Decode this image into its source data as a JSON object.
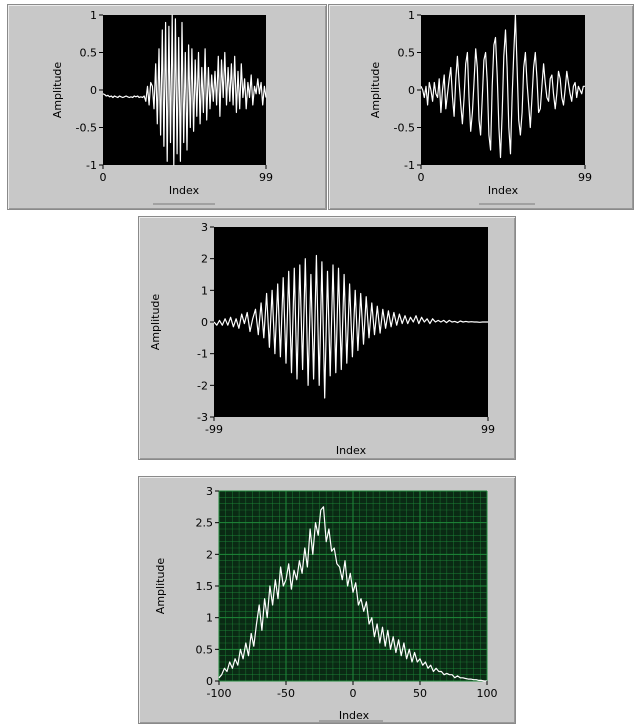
{
  "chart_data": [
    {
      "type": "line",
      "title": "",
      "xlabel": "Index",
      "ylabel": "Amplitude",
      "xlim": [
        0,
        99
      ],
      "ylim": [
        -1,
        1
      ],
      "xticks": [
        "0",
        "99"
      ],
      "yticks": [
        "1",
        "0.5",
        "0",
        "-0.5",
        "-1"
      ],
      "grid": false,
      "plot_bg": "#000000",
      "line_color": "#ffffff",
      "series": [
        {
          "x": [
            0,
            1,
            2,
            3,
            4,
            5,
            6,
            7,
            8,
            9,
            10,
            11,
            12,
            13,
            14,
            15,
            16,
            17,
            18,
            19,
            20,
            21,
            22,
            23,
            24,
            25,
            26,
            27,
            28,
            29,
            30,
            31,
            32,
            33,
            34,
            35,
            36,
            37,
            38,
            39,
            40,
            41,
            42,
            43,
            44,
            45,
            46,
            47,
            48,
            49,
            50,
            51,
            52,
            53,
            54,
            55,
            56,
            57,
            58,
            59,
            60,
            61,
            62,
            63,
            64,
            65,
            66,
            67,
            68,
            69,
            70,
            71,
            72,
            73,
            74,
            75,
            76,
            77,
            78,
            79,
            80,
            81,
            82,
            83,
            84,
            85,
            86,
            87,
            88,
            89,
            90,
            91,
            92,
            93,
            94,
            95,
            96,
            97,
            98,
            99
          ],
          "y": [
            -0.05,
            -0.06,
            -0.08,
            -0.07,
            -0.09,
            -0.08,
            -0.1,
            -0.08,
            -0.09,
            -0.1,
            -0.08,
            -0.09,
            -0.1,
            -0.09,
            -0.08,
            -0.09,
            -0.1,
            -0.09,
            -0.1,
            -0.08,
            -0.09,
            -0.08,
            -0.1,
            -0.09,
            -0.1,
            -0.08,
            -0.15,
            0.05,
            -0.2,
            0.1,
            0.05,
            -0.25,
            0.35,
            -0.45,
            0.55,
            -0.6,
            0.8,
            -0.75,
            0.9,
            -0.95,
            0.85,
            -0.7,
            1.0,
            -1.0,
            0.95,
            -0.85,
            0.7,
            -0.95,
            0.9,
            -0.7,
            0.5,
            -0.8,
            0.6,
            -0.5,
            0.55,
            -0.55,
            0.4,
            -0.35,
            0.5,
            -0.45,
            0.3,
            -0.3,
            0.55,
            -0.4,
            0.3,
            -0.25,
            0.2,
            -0.15,
            0.25,
            -0.2,
            0.45,
            -0.35,
            0.4,
            -0.1,
            0.5,
            -0.2,
            0.3,
            -0.15,
            0.35,
            -0.2,
            0.45,
            -0.3,
            0.25,
            -0.25,
            0.35,
            -0.1,
            0.15,
            -0.25,
            0.1,
            -0.1,
            0.2,
            -0.2,
            0.05,
            -0.05,
            0.15,
            -0.05,
            0.1,
            -0.2,
            0.05,
            -0.1
          ]
        }
      ]
    },
    {
      "type": "line",
      "title": "",
      "xlabel": "Index",
      "ylabel": "Amplitude",
      "xlim": [
        0,
        99
      ],
      "ylim": [
        -1,
        1
      ],
      "xticks": [
        "0",
        "99"
      ],
      "yticks": [
        "1",
        "0.5",
        "0",
        "-0.5",
        "-1"
      ],
      "grid": false,
      "plot_bg": "#000000",
      "line_color": "#ffffff",
      "series": [
        {
          "x": [
            0,
            1,
            2,
            3,
            4,
            5,
            6,
            7,
            8,
            9,
            10,
            11,
            12,
            13,
            14,
            15,
            16,
            17,
            18,
            19,
            20,
            21,
            22,
            23,
            24,
            25,
            26,
            27,
            28,
            29,
            30,
            31,
            32,
            33,
            34,
            35,
            36,
            37,
            38,
            39,
            40,
            41,
            42,
            43,
            44,
            45,
            46,
            47,
            48,
            49,
            50,
            51,
            52,
            53,
            54,
            55,
            56,
            57,
            58,
            59,
            60,
            61,
            62,
            63,
            64,
            65,
            66,
            67,
            68,
            69,
            70,
            71,
            72,
            73,
            74,
            75,
            76,
            77,
            78,
            79,
            80,
            81,
            82,
            83,
            84,
            85,
            86,
            87,
            88,
            89,
            90,
            91,
            92,
            93,
            94,
            95,
            96,
            97,
            98,
            99
          ],
          "y": [
            0.05,
            0.0,
            -0.1,
            0.05,
            -0.2,
            0.1,
            0.0,
            -0.15,
            0.1,
            -0.05,
            -0.1,
            0.15,
            -0.3,
            0.0,
            0.2,
            -0.25,
            -0.05,
            0.15,
            0.3,
            -0.1,
            -0.35,
            0.15,
            0.45,
            0.1,
            -0.2,
            -0.45,
            -0.1,
            0.35,
            0.5,
            -0.1,
            -0.55,
            -0.3,
            0.1,
            0.55,
            0.3,
            -0.4,
            -0.6,
            -0.1,
            0.4,
            0.5,
            0.1,
            -0.6,
            -0.8,
            0.05,
            0.6,
            0.7,
            0.2,
            -0.5,
            -0.9,
            -0.3,
            0.45,
            0.8,
            0.3,
            -0.5,
            -0.85,
            -0.1,
            0.5,
            1.0,
            0.3,
            -0.4,
            -0.6,
            -0.3,
            0.3,
            0.5,
            0.1,
            -0.2,
            -0.5,
            -0.1,
            0.3,
            0.5,
            0.15,
            -0.3,
            -0.25,
            0.05,
            0.35,
            0.1,
            -0.1,
            -0.15,
            0.15,
            0.2,
            -0.05,
            -0.25,
            -0.05,
            0.25,
            0.15,
            -0.1,
            -0.2,
            0.0,
            0.25,
            0.1,
            -0.05,
            -0.15,
            0.05,
            0.1,
            -0.1,
            0.05,
            0.0,
            -0.05,
            0.05,
            0.05
          ]
        }
      ]
    },
    {
      "type": "line",
      "title": "",
      "xlabel": "Index",
      "ylabel": "Amplitude",
      "xlim": [
        -99,
        99
      ],
      "ylim": [
        -3,
        3
      ],
      "xticks": [
        "-99",
        "99"
      ],
      "yticks": [
        "3",
        "2",
        "1",
        "0",
        "-1",
        "-2",
        "-3"
      ],
      "grid": false,
      "plot_bg": "#000000",
      "line_color": "#ffffff",
      "series": [
        {
          "x": [
            -99,
            -97,
            -95,
            -93,
            -91,
            -89,
            -87,
            -85,
            -83,
            -81,
            -79,
            -77,
            -75,
            -73,
            -71,
            -69,
            -67,
            -65,
            -63,
            -61,
            -59,
            -57,
            -55,
            -53,
            -51,
            -49,
            -47,
            -45,
            -43,
            -41,
            -39,
            -37,
            -35,
            -33,
            -31,
            -29,
            -27,
            -25,
            -23,
            -21,
            -19,
            -17,
            -15,
            -13,
            -11,
            -9,
            -7,
            -5,
            -3,
            -1,
            1,
            3,
            5,
            7,
            9,
            11,
            13,
            15,
            17,
            19,
            21,
            23,
            25,
            27,
            29,
            31,
            33,
            35,
            37,
            39,
            41,
            43,
            45,
            47,
            49,
            51,
            53,
            55,
            57,
            59,
            61,
            63,
            65,
            67,
            69,
            71,
            73,
            75,
            77,
            79,
            81,
            83,
            85,
            87,
            89,
            91,
            93,
            95,
            97,
            99
          ],
          "y": [
            0.0,
            -0.1,
            0.05,
            -0.1,
            0.1,
            -0.1,
            0.15,
            -0.15,
            0.1,
            -0.2,
            0.25,
            -0.05,
            0.3,
            -0.3,
            0.1,
            0.4,
            -0.4,
            0.6,
            -0.5,
            0.9,
            -0.8,
            1.0,
            -1.0,
            1.2,
            -1.1,
            1.4,
            -1.3,
            1.6,
            -1.6,
            1.7,
            -1.8,
            1.8,
            -1.5,
            2.0,
            -2.0,
            1.5,
            -1.8,
            2.1,
            -2.0,
            1.9,
            -2.4,
            1.6,
            -1.7,
            1.8,
            -1.6,
            1.7,
            -1.5,
            1.5,
            -1.3,
            1.2,
            -1.1,
            1.0,
            -0.9,
            0.9,
            -0.7,
            0.8,
            -0.5,
            0.6,
            -0.4,
            0.5,
            -0.35,
            0.4,
            -0.2,
            0.35,
            -0.15,
            0.3,
            -0.1,
            0.25,
            -0.05,
            0.2,
            -0.05,
            0.15,
            0.0,
            0.2,
            -0.05,
            0.15,
            0.0,
            0.1,
            -0.05,
            0.1,
            0.0,
            0.05,
            0.0,
            0.05,
            -0.02,
            0.05,
            0.0,
            0.02,
            -0.02,
            0.03,
            0.0,
            0.02,
            0.0,
            0.01,
            0.0,
            0.0,
            -0.01,
            0.0,
            0.0,
            0.0
          ]
        }
      ]
    },
    {
      "type": "line",
      "title": "",
      "xlabel": "Index",
      "ylabel": "Amplitude",
      "xlim": [
        -100,
        100
      ],
      "ylim": [
        0,
        3
      ],
      "xticks": [
        "-100",
        "-50",
        "0",
        "50",
        "100"
      ],
      "yticks": [
        "3",
        "2.5",
        "2",
        "1.5",
        "1",
        "0.5",
        "0"
      ],
      "grid": true,
      "plot_bg": "#0a2a14",
      "grid_color": "#1f8a3a",
      "line_color": "#ffffff",
      "series": [
        {
          "x": [
            -100,
            -98,
            -96,
            -94,
            -92,
            -90,
            -88,
            -86,
            -84,
            -82,
            -80,
            -78,
            -76,
            -74,
            -72,
            -70,
            -68,
            -66,
            -64,
            -62,
            -60,
            -58,
            -56,
            -54,
            -52,
            -50,
            -48,
            -46,
            -44,
            -42,
            -40,
            -38,
            -36,
            -34,
            -32,
            -30,
            -28,
            -26,
            -24,
            -22,
            -20,
            -18,
            -16,
            -14,
            -12,
            -10,
            -8,
            -6,
            -4,
            -2,
            0,
            2,
            4,
            6,
            8,
            10,
            12,
            14,
            16,
            18,
            20,
            22,
            24,
            26,
            28,
            30,
            32,
            34,
            36,
            38,
            40,
            42,
            44,
            46,
            48,
            50,
            52,
            54,
            56,
            58,
            60,
            62,
            64,
            66,
            68,
            70,
            72,
            74,
            76,
            78,
            80,
            82,
            84,
            86,
            88,
            90,
            92,
            94,
            96,
            98,
            100
          ],
          "y": [
            0.05,
            0.1,
            0.2,
            0.15,
            0.3,
            0.2,
            0.35,
            0.25,
            0.5,
            0.35,
            0.6,
            0.4,
            0.75,
            0.55,
            0.9,
            1.2,
            0.8,
            1.3,
            1.0,
            1.5,
            1.2,
            1.6,
            1.3,
            1.8,
            1.5,
            1.6,
            1.85,
            1.45,
            1.75,
            1.6,
            1.9,
            1.7,
            2.1,
            1.8,
            2.4,
            2.0,
            2.5,
            2.3,
            2.7,
            2.75,
            2.2,
            2.4,
            2.05,
            2.1,
            1.85,
            1.8,
            1.6,
            1.9,
            1.5,
            1.7,
            1.4,
            1.55,
            1.2,
            1.3,
            1.1,
            1.25,
            0.9,
            1.0,
            0.7,
            0.9,
            0.6,
            0.85,
            0.55,
            0.8,
            0.5,
            0.7,
            0.45,
            0.65,
            0.4,
            0.6,
            0.35,
            0.5,
            0.3,
            0.45,
            0.3,
            0.35,
            0.25,
            0.3,
            0.2,
            0.25,
            0.15,
            0.2,
            0.15,
            0.15,
            0.1,
            0.12,
            0.1,
            0.1,
            0.05,
            0.08,
            0.05,
            0.05,
            0.04,
            0.03,
            0.03,
            0.02,
            0.02,
            0.01,
            0.01,
            0.0,
            0.0
          ]
        }
      ]
    }
  ]
}
